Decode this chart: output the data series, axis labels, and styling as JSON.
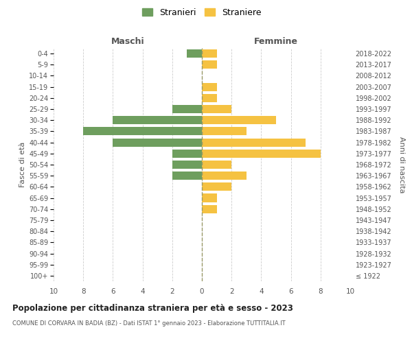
{
  "age_groups": [
    "100+",
    "95-99",
    "90-94",
    "85-89",
    "80-84",
    "75-79",
    "70-74",
    "65-69",
    "60-64",
    "55-59",
    "50-54",
    "45-49",
    "40-44",
    "35-39",
    "30-34",
    "25-29",
    "20-24",
    "15-19",
    "10-14",
    "5-9",
    "0-4"
  ],
  "birth_years": [
    "≤ 1922",
    "1923-1927",
    "1928-1932",
    "1933-1937",
    "1938-1942",
    "1943-1947",
    "1948-1952",
    "1953-1957",
    "1958-1962",
    "1963-1967",
    "1968-1972",
    "1973-1977",
    "1978-1982",
    "1983-1987",
    "1988-1992",
    "1993-1997",
    "1998-2002",
    "2003-2007",
    "2008-2012",
    "2013-2017",
    "2018-2022"
  ],
  "males": [
    0,
    0,
    0,
    0,
    0,
    0,
    0,
    0,
    0,
    2,
    2,
    2,
    6,
    8,
    6,
    2,
    0,
    0,
    0,
    0,
    1
  ],
  "females": [
    0,
    0,
    0,
    0,
    0,
    0,
    1,
    1,
    2,
    3,
    2,
    8,
    7,
    3,
    5,
    2,
    1,
    1,
    0,
    1,
    1
  ],
  "male_color": "#6e9e5e",
  "female_color": "#f5c242",
  "title": "Popolazione per cittadinanza straniera per età e sesso - 2023",
  "subtitle": "COMUNE DI CORVARA IN BADIA (BZ) - Dati ISTAT 1° gennaio 2023 - Elaborazione TUTTITALIA.IT",
  "xlabel_left": "Maschi",
  "xlabel_right": "Femmine",
  "ylabel_left": "Fasce di età",
  "ylabel_right": "Anni di nascita",
  "legend_stranieri": "Stranieri",
  "legend_straniere": "Straniere",
  "xlim": 10,
  "background_color": "#ffffff",
  "grid_color": "#cccccc",
  "text_color": "#555555"
}
